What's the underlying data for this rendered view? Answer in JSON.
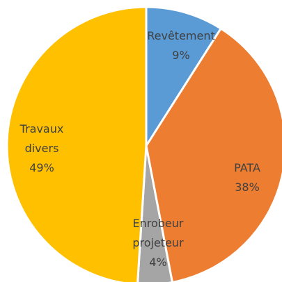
{
  "chart_data": {
    "type": "pie",
    "categories": [
      "Revêtement",
      "PATA",
      "Enrobeur projeteur",
      "Travaux divers"
    ],
    "values": [
      9,
      38,
      4,
      49
    ],
    "value_labels": [
      "9%",
      "38%",
      "4%",
      "49%"
    ],
    "colors": [
      "#5b9bd5",
      "#ed7d31",
      "#a5a5a5",
      "#ffc000"
    ]
  }
}
